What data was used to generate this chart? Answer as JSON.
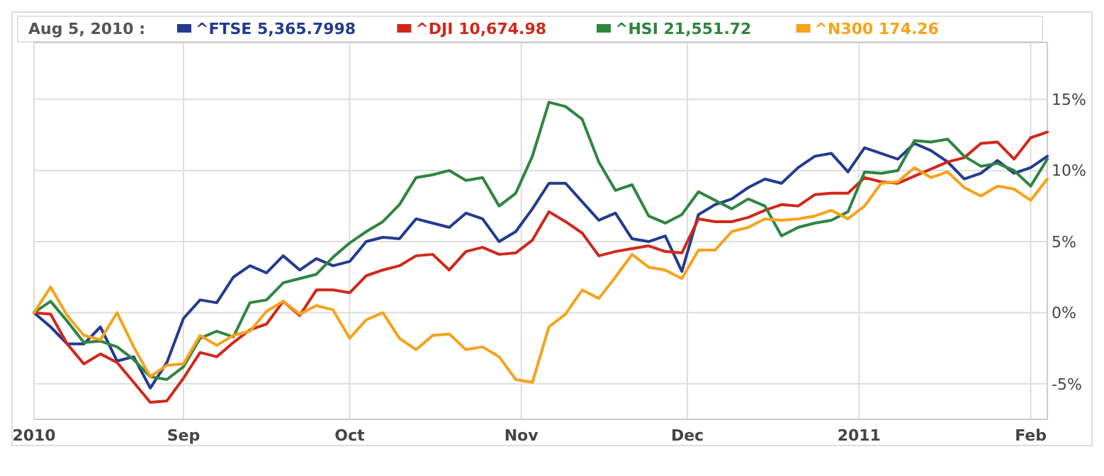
{
  "chart_data": {
    "type": "line",
    "legend_title": "Aug 5, 2010 :",
    "legend": "top",
    "grid": true,
    "marker": "none",
    "line_style": "solid",
    "x": [
      "2010-08-05",
      "2010-08-08",
      "2010-08-11",
      "2010-08-14",
      "2010-08-17",
      "2010-08-20",
      "2010-08-23",
      "2010-08-26",
      "2010-08-29",
      "2010-09-01",
      "2010-09-04",
      "2010-09-07",
      "2010-09-10",
      "2010-09-13",
      "2010-09-16",
      "2010-09-19",
      "2010-09-22",
      "2010-09-25",
      "2010-09-28",
      "2010-10-01",
      "2010-10-04",
      "2010-10-07",
      "2010-10-10",
      "2010-10-13",
      "2010-10-16",
      "2010-10-19",
      "2010-10-22",
      "2010-10-25",
      "2010-10-28",
      "2010-10-31",
      "2010-11-03",
      "2010-11-06",
      "2010-11-09",
      "2010-11-12",
      "2010-11-15",
      "2010-11-18",
      "2010-11-21",
      "2010-11-24",
      "2010-11-27",
      "2010-11-30",
      "2010-12-03",
      "2010-12-06",
      "2010-12-09",
      "2010-12-12",
      "2010-12-15",
      "2010-12-18",
      "2010-12-21",
      "2010-12-24",
      "2010-12-27",
      "2010-12-30",
      "2011-01-02",
      "2011-01-05",
      "2011-01-08",
      "2011-01-11",
      "2011-01-14",
      "2011-01-17",
      "2011-01-20",
      "2011-01-23",
      "2011-01-26",
      "2011-01-29",
      "2011-02-01",
      "2011-02-04"
    ],
    "xlim": [
      "2010-08-05",
      "2011-02-04"
    ],
    "xticks": [
      {
        "value": "2010-08-05",
        "label": "2010"
      },
      {
        "value": "2010-09-01",
        "label": "Sep"
      },
      {
        "value": "2010-10-01",
        "label": "Oct"
      },
      {
        "value": "2010-11-01",
        "label": "Nov"
      },
      {
        "value": "2010-12-01",
        "label": "Dec"
      },
      {
        "value": "2011-01-01",
        "label": "2011"
      },
      {
        "value": "2011-02-01",
        "label": "Feb"
      }
    ],
    "ylim": [
      -7.5,
      19
    ],
    "yticks": [
      {
        "value": -5,
        "label": "-5%"
      },
      {
        "value": 0,
        "label": "0%"
      },
      {
        "value": 5,
        "label": "5%"
      },
      {
        "value": 10,
        "label": "10%"
      },
      {
        "value": 15,
        "label": "15%"
      }
    ],
    "series": [
      {
        "name": "^FTSE 5,365.7998",
        "color": "#233b8f",
        "values": [
          0,
          -1.0,
          -2.2,
          -2.2,
          -1.0,
          -3.4,
          -3.1,
          -5.3,
          -3.5,
          -0.4,
          0.9,
          0.7,
          2.5,
          3.3,
          2.8,
          4.0,
          3.0,
          3.8,
          3.3,
          3.6,
          5.0,
          5.3,
          5.2,
          6.6,
          6.3,
          6.0,
          7.0,
          6.6,
          5.0,
          5.7,
          7.3,
          9.1,
          9.1,
          7.8,
          6.5,
          7.0,
          5.2,
          5.0,
          5.4,
          2.9,
          6.9,
          7.6,
          8.0,
          8.8,
          9.4,
          9.1,
          10.2,
          11.0,
          11.2,
          9.9,
          11.6,
          11.2,
          10.8,
          11.9,
          11.4,
          10.6,
          9.4,
          9.8,
          10.7,
          9.8,
          10.2,
          11.0
        ]
      },
      {
        "name": "^DJI 10,674.98",
        "color": "#d0281a",
        "values": [
          0,
          -0.1,
          -2.2,
          -3.6,
          -2.9,
          -3.5,
          -4.9,
          -6.3,
          -6.2,
          -4.6,
          -2.8,
          -3.1,
          -2.1,
          -1.2,
          -0.8,
          0.8,
          -0.2,
          1.6,
          1.6,
          1.4,
          2.6,
          3.0,
          3.3,
          4.0,
          4.1,
          3.0,
          4.3,
          4.6,
          4.1,
          4.2,
          5.1,
          7.1,
          6.4,
          5.6,
          4.0,
          4.3,
          4.5,
          4.7,
          4.3,
          4.2,
          6.6,
          6.4,
          6.4,
          6.7,
          7.2,
          7.6,
          7.5,
          8.3,
          8.4,
          8.4,
          9.5,
          9.2,
          9.1,
          9.6,
          10.1,
          10.6,
          10.9,
          11.9,
          12.0,
          10.8,
          12.3,
          12.7
        ]
      },
      {
        "name": "^HSI 21,551.72",
        "color": "#2e8540",
        "values": [
          0,
          0.8,
          -0.6,
          -2.1,
          -2.0,
          -2.4,
          -3.3,
          -4.5,
          -4.7,
          -3.8,
          -1.8,
          -1.3,
          -1.7,
          0.7,
          0.9,
          2.1,
          2.4,
          2.7,
          3.9,
          4.9,
          5.7,
          6.4,
          7.6,
          9.5,
          9.7,
          10.0,
          9.3,
          9.5,
          7.5,
          8.4,
          11.0,
          14.8,
          14.5,
          13.6,
          10.6,
          8.6,
          9.0,
          6.8,
          6.3,
          6.9,
          8.5,
          7.9,
          7.3,
          8.0,
          7.5,
          5.4,
          6.0,
          6.3,
          6.5,
          7.1,
          9.9,
          9.8,
          10.0,
          12.1,
          12.0,
          12.2,
          11.0,
          10.3,
          10.5,
          10.0,
          8.9,
          10.8
        ]
      },
      {
        "name": "^N300 174.26",
        "color": "#f5a31a",
        "values": [
          0,
          1.8,
          -0.2,
          -1.6,
          -1.9,
          0,
          -2.4,
          -4.5,
          -3.7,
          -3.6,
          -1.6,
          -2.3,
          -1.6,
          -1.3,
          0.1,
          0.8,
          -0.1,
          0.5,
          0.2,
          -1.8,
          -0.5,
          0.0,
          -1.8,
          -2.6,
          -1.6,
          -1.5,
          -2.6,
          -2.4,
          -3.1,
          -4.7,
          -4.9,
          -1.0,
          -0.1,
          1.6,
          1.0,
          2.5,
          4.1,
          3.2,
          3.0,
          2.4,
          4.4,
          4.4,
          5.7,
          6.0,
          6.6,
          6.5,
          6.6,
          6.8,
          7.2,
          6.6,
          7.5,
          9.1,
          9.2,
          10.2,
          9.5,
          9.9,
          8.8,
          8.2,
          8.9,
          8.7,
          7.9,
          9.4
        ]
      }
    ]
  }
}
